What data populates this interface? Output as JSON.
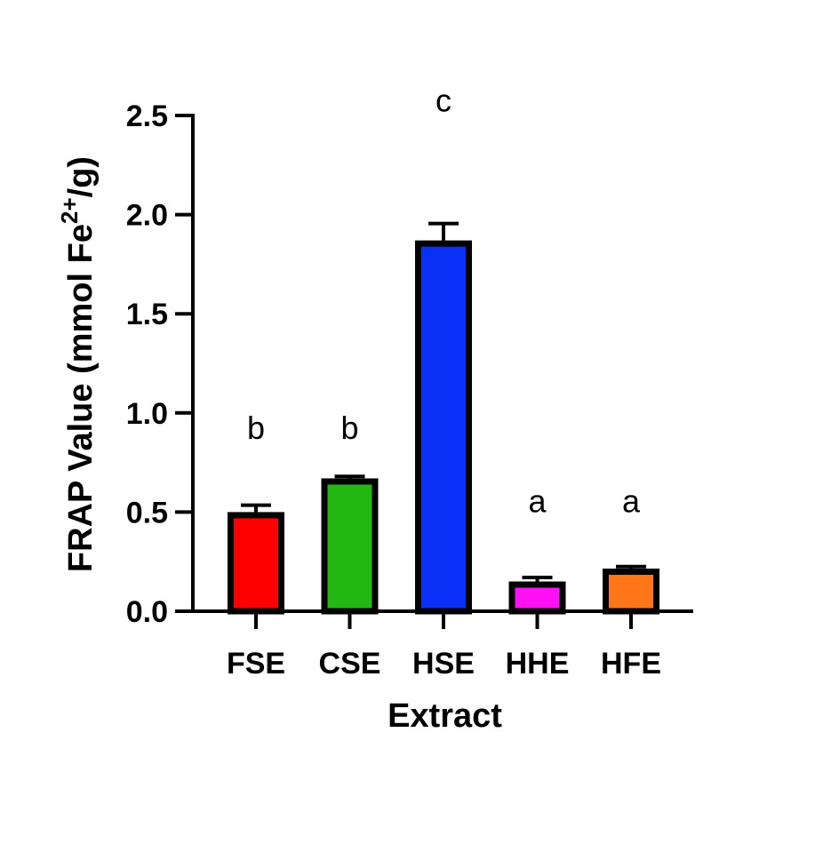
{
  "chart_data": {
    "type": "bar",
    "xlabel": "Extract",
    "ylabel": {
      "prefix": "FRAP Value (mmol Fe",
      "sup": "2+",
      "suffix": "/g)"
    },
    "ylim": [
      0,
      2.5
    ],
    "yticks": [
      "0.0",
      "0.5",
      "1.0",
      "1.5",
      "2.0",
      "2.5"
    ],
    "grid": false,
    "legend": "none",
    "categories": [
      "FSE",
      "CSE",
      "HSE",
      "HHE",
      "HFE"
    ],
    "values": [
      0.5,
      0.67,
      1.87,
      0.15,
      0.215
    ],
    "errors": [
      0.035,
      0.01,
      0.085,
      0.02,
      0.01
    ],
    "significance": [
      "b",
      "b",
      "c",
      "a",
      "a"
    ],
    "significance_y": [
      0.87,
      0.87,
      2.52,
      0.5,
      0.5
    ],
    "colors": [
      "#ff0000",
      "#22b712",
      "#0a2ff5",
      "#ff10f5",
      "#ff7518"
    ],
    "outline_color": "#000000"
  }
}
